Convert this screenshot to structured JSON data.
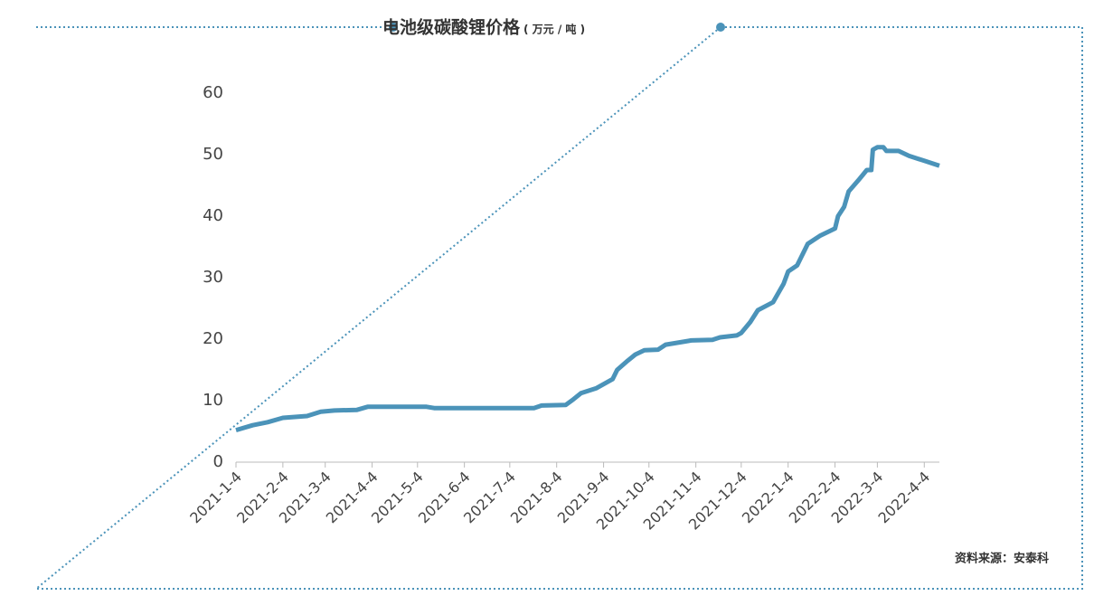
{
  "chart_data": {
    "type": "line",
    "title": "电池级碳酸锂价格",
    "title_unit": "( 万元 / 吨 )",
    "source": "资料来源：安泰科",
    "color": "#4b93b9",
    "x": [
      "2021-1-4",
      "2021-1-15",
      "2021-1-25",
      "2021-2-4",
      "2021-2-20",
      "2021-3-1",
      "2021-3-10",
      "2021-3-25",
      "2021-4-1",
      "2021-5-10",
      "2021-5-15",
      "2021-7-20",
      "2021-7-25",
      "2021-8-10",
      "2021-8-15",
      "2021-8-20",
      "2021-8-30",
      "2021-9-10",
      "2021-9-13",
      "2021-9-20",
      "2021-9-25",
      "2021-10-1",
      "2021-10-10",
      "2021-10-15",
      "2021-10-25",
      "2021-11-1",
      "2021-11-15",
      "2021-11-20",
      "2021-12-1",
      "2021-12-4",
      "2021-12-10",
      "2021-12-15",
      "2021-12-25",
      "2022-1-1",
      "2022-1-4",
      "2022-1-10",
      "2022-1-17",
      "2022-1-25",
      "2022-2-4",
      "2022-2-6",
      "2022-2-10",
      "2022-2-13",
      "2022-2-20",
      "2022-2-25",
      "2022-2-28",
      "2022-3-1",
      "2022-3-4",
      "2022-3-8",
      "2022-3-10",
      "2022-3-18",
      "2022-3-25",
      "2022-4-4",
      "2022-4-14"
    ],
    "values": [
      5.2,
      6.0,
      6.5,
      7.2,
      7.5,
      8.2,
      8.4,
      8.5,
      9.0,
      9.0,
      8.8,
      8.8,
      9.2,
      9.3,
      10.2,
      11.2,
      12.0,
      13.5,
      15.0,
      16.5,
      17.5,
      18.2,
      18.3,
      19.1,
      19.5,
      19.8,
      19.9,
      20.3,
      20.6,
      21.0,
      22.8,
      24.7,
      26.0,
      29.0,
      31.0,
      32.0,
      35.5,
      36.8,
      38.0,
      40.0,
      41.5,
      44.0,
      46.0,
      47.5,
      47.5,
      50.8,
      51.2,
      51.2,
      50.6,
      50.6,
      49.8,
      49.0,
      48.2
    ],
    "xlim": [
      "2021-1-4",
      "2022-4-14"
    ],
    "xticks": [
      "2021-1-4",
      "2021-2-4",
      "2021-3-4",
      "2021-4-4",
      "2021-5-4",
      "2021-6-4",
      "2021-7-4",
      "2021-8-4",
      "2021-9-4",
      "2021-10-4",
      "2021-11-4",
      "2021-12-4",
      "2022-1-4",
      "2022-2-4",
      "2022-3-4",
      "2022-4-4"
    ],
    "ylim": [
      0,
      60
    ],
    "yticks": [
      0,
      10,
      20,
      30,
      40,
      50,
      60
    ]
  }
}
